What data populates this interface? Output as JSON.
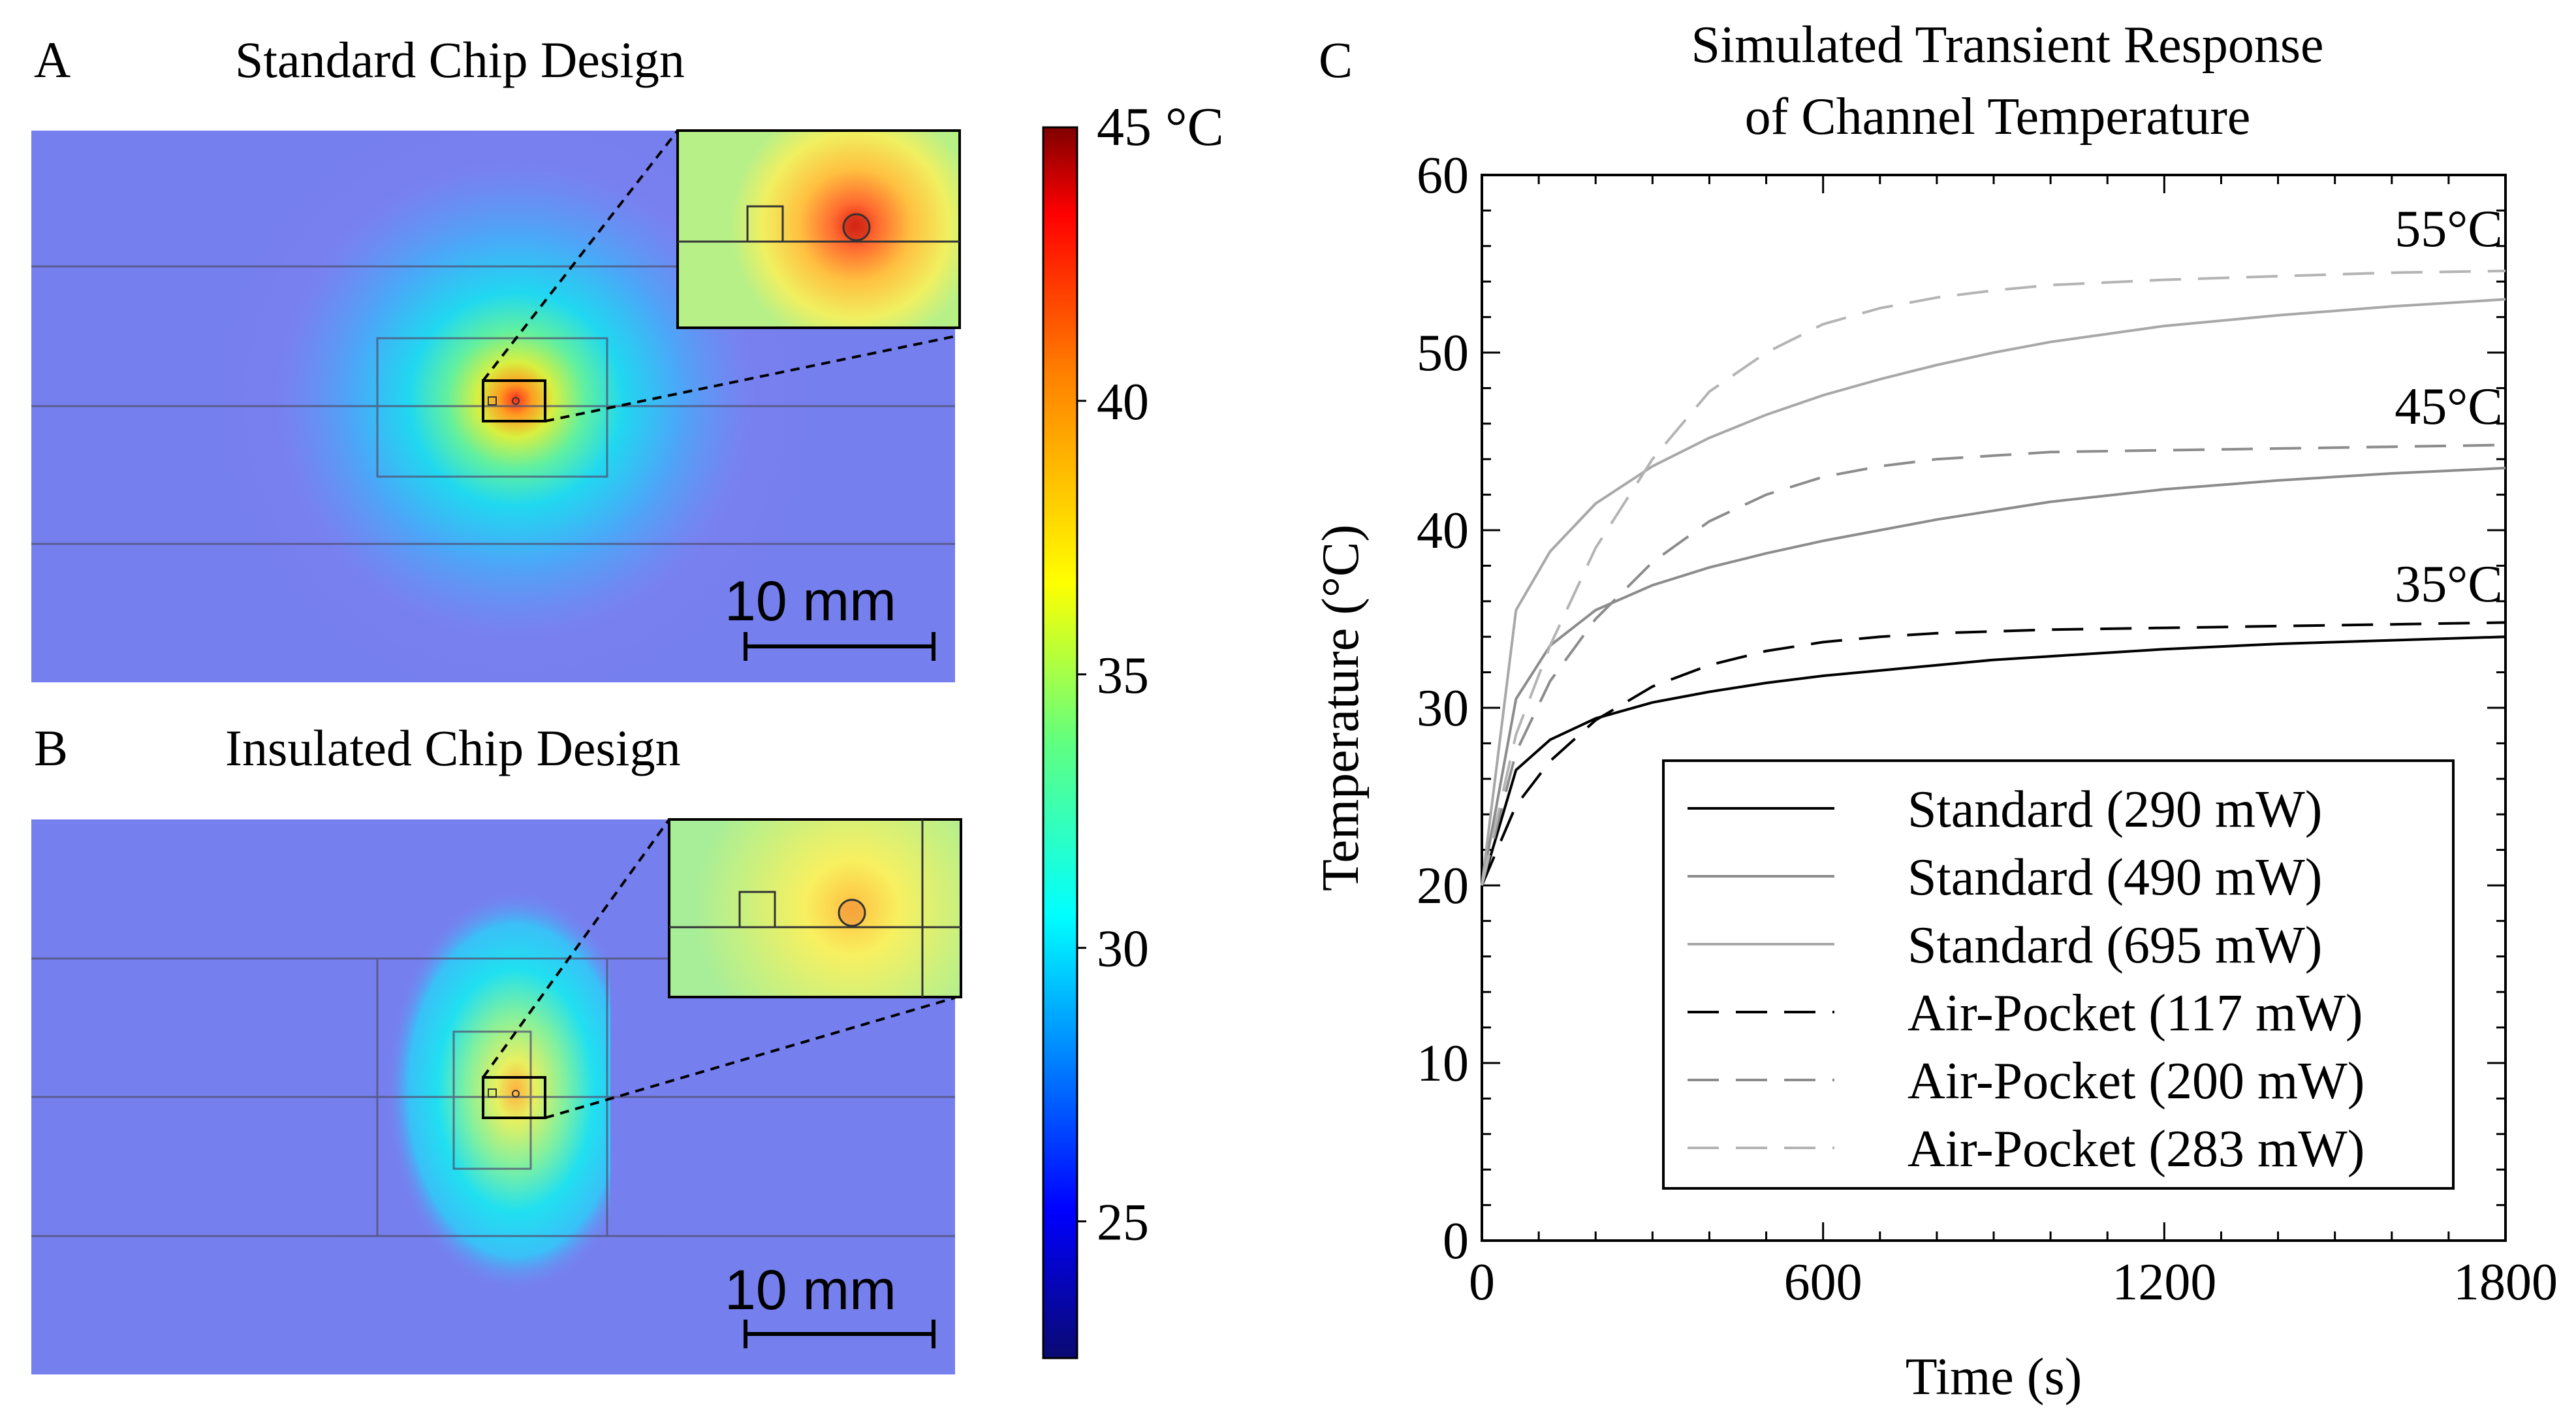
{
  "panels": {
    "a": {
      "letter": "A",
      "title": "Standard Chip Design",
      "scale_bar": "10 mm"
    },
    "b": {
      "letter": "B",
      "title": "Insulated Chip Design",
      "scale_bar": "10 mm"
    }
  },
  "colorbar": {
    "unit_label": "45 °C",
    "ticks": [
      "40",
      "35",
      "30",
      "25"
    ],
    "tick_values": [
      40,
      35,
      30,
      25
    ],
    "min": 22.5,
    "max": 45,
    "colors": [
      "#08086e",
      "#0000ff",
      "#00ffff",
      "#80ff40",
      "#ffff00",
      "#ff8000",
      "#ff0000",
      "#800000"
    ]
  },
  "chart_data": {
    "type": "line",
    "panel_letter": "C",
    "title_line1": "Simulated Transient Response",
    "title_line2": "of Channel Temperature",
    "xlabel": "Time (s)",
    "ylabel": "Temperature (°C)",
    "xlim": [
      0,
      1800
    ],
    "ylim": [
      0,
      60
    ],
    "xticks": [
      0,
      600,
      1200,
      1800
    ],
    "yticks": [
      0,
      10,
      20,
      30,
      40,
      50,
      60
    ],
    "xtick_labels": [
      "0",
      "600",
      "1200",
      "1800"
    ],
    "ytick_labels": [
      "0",
      "10",
      "20",
      "30",
      "40",
      "50",
      "60"
    ],
    "x": [
      0,
      60,
      120,
      200,
      300,
      400,
      500,
      600,
      700,
      800,
      900,
      1000,
      1200,
      1400,
      1600,
      1800
    ],
    "series": [
      {
        "name": "Standard (290 mW)",
        "style": "solid",
        "color": "#000000",
        "values": [
          20,
          26.5,
          28.2,
          29.4,
          30.3,
          30.9,
          31.4,
          31.8,
          32.1,
          32.4,
          32.7,
          32.9,
          33.3,
          33.6,
          33.8,
          34.0
        ]
      },
      {
        "name": "Standard (490 mW)",
        "style": "solid",
        "color": "#8c8c8c",
        "values": [
          20,
          30.5,
          33.5,
          35.5,
          36.9,
          37.9,
          38.7,
          39.4,
          40.0,
          40.6,
          41.1,
          41.6,
          42.3,
          42.8,
          43.2,
          43.5
        ]
      },
      {
        "name": "Standard (695 mW)",
        "style": "solid",
        "color": "#a8a8a8",
        "values": [
          20,
          35.5,
          38.8,
          41.5,
          43.6,
          45.2,
          46.5,
          47.6,
          48.5,
          49.3,
          50.0,
          50.6,
          51.5,
          52.1,
          52.6,
          53.0
        ]
      },
      {
        "name": "Air-Pocket (117 mW)",
        "style": "dashed",
        "color": "#000000",
        "values": [
          20,
          24.5,
          27.0,
          29.3,
          31.2,
          32.4,
          33.2,
          33.7,
          34.0,
          34.2,
          34.3,
          34.4,
          34.5,
          34.6,
          34.7,
          34.8
        ]
      },
      {
        "name": "Air-Pocket (200 mW)",
        "style": "dashed",
        "color": "#8c8c8c",
        "values": [
          20,
          27.5,
          31.5,
          35.0,
          38.2,
          40.5,
          42.0,
          43.0,
          43.6,
          44.0,
          44.2,
          44.4,
          44.5,
          44.6,
          44.7,
          44.8
        ]
      },
      {
        "name": "Air-Pocket (283 mW)",
        "style": "dashed",
        "color": "#b4b4b4",
        "values": [
          20,
          28.5,
          33.5,
          39.0,
          44.0,
          47.8,
          50.0,
          51.6,
          52.5,
          53.1,
          53.5,
          53.8,
          54.1,
          54.3,
          54.5,
          54.6
        ]
      }
    ],
    "annotations": [
      {
        "text": "55°C",
        "x": 1700,
        "y": 56
      },
      {
        "text": "45°C",
        "x": 1700,
        "y": 46
      },
      {
        "text": "35°C",
        "x": 1700,
        "y": 36
      }
    ]
  }
}
